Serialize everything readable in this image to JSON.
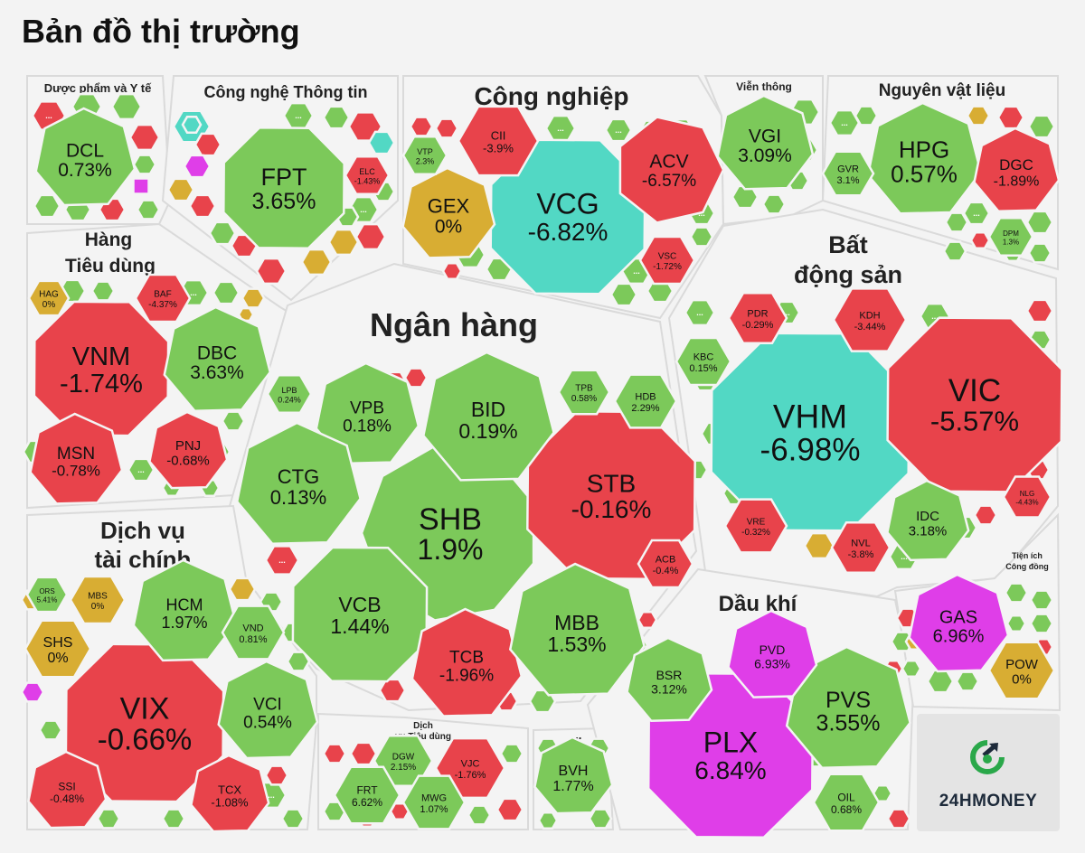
{
  "page": {
    "title": "Bản đồ thị trường"
  },
  "colors": {
    "up": "#7cc95a",
    "down": "#e8434b",
    "flat": "#d8ad33",
    "ceiling": "#df3ee8",
    "floor": "#52d8c4",
    "panel": "#f4f4f4"
  },
  "logo": {
    "text": "24HMONEY",
    "icon": "24hmoney-logo-icon"
  },
  "chart_data": {
    "type": "treemap",
    "title": "Bản đồ thị trường",
    "sectors": [
      {
        "name": "Dược phẩm và Y tế",
        "stocks": [
          {
            "ticker": "DCL",
            "change": "0.73%",
            "status": "up"
          }
        ]
      },
      {
        "name": "Công nghệ Thông tin",
        "stocks": [
          {
            "ticker": "FPT",
            "change": "3.65%",
            "status": "up"
          },
          {
            "ticker": "ELC",
            "change": "-1.43%",
            "status": "down"
          }
        ]
      },
      {
        "name": "Công nghiệp",
        "stocks": [
          {
            "ticker": "VCG",
            "change": "-6.82%",
            "status": "floor"
          },
          {
            "ticker": "GEX",
            "change": "0%",
            "status": "flat"
          },
          {
            "ticker": "ACV",
            "change": "-6.57%",
            "status": "down"
          },
          {
            "ticker": "CII",
            "change": "-3.9%",
            "status": "down"
          },
          {
            "ticker": "VTP",
            "change": "2.3%",
            "status": "up"
          },
          {
            "ticker": "VSC",
            "change": "-1.72%",
            "status": "down"
          }
        ]
      },
      {
        "name": "Viễn thông",
        "stocks": [
          {
            "ticker": "VGI",
            "change": "3.09%",
            "status": "up"
          }
        ]
      },
      {
        "name": "Nguyên vật liệu",
        "stocks": [
          {
            "ticker": "HPG",
            "change": "0.57%",
            "status": "up"
          },
          {
            "ticker": "DGC",
            "change": "-1.89%",
            "status": "down"
          },
          {
            "ticker": "GVR",
            "change": "3.1%",
            "status": "up"
          },
          {
            "ticker": "DPM",
            "change": "1.3%",
            "status": "up"
          }
        ]
      },
      {
        "name": "Hàng Tiêu dùng",
        "stocks": [
          {
            "ticker": "VNM",
            "change": "-1.74%",
            "status": "down"
          },
          {
            "ticker": "DBC",
            "change": "3.63%",
            "status": "up"
          },
          {
            "ticker": "MSN",
            "change": "-0.78%",
            "status": "down"
          },
          {
            "ticker": "PNJ",
            "change": "-0.68%",
            "status": "down"
          },
          {
            "ticker": "HAG",
            "change": "0%",
            "status": "flat"
          },
          {
            "ticker": "BAF",
            "change": "-4.37%",
            "status": "down"
          }
        ]
      },
      {
        "name": "Ngân hàng",
        "stocks": [
          {
            "ticker": "SHB",
            "change": "1.9%",
            "status": "up"
          },
          {
            "ticker": "STB",
            "change": "-0.16%",
            "status": "down"
          },
          {
            "ticker": "BID",
            "change": "0.19%",
            "status": "up"
          },
          {
            "ticker": "VPB",
            "change": "0.18%",
            "status": "up"
          },
          {
            "ticker": "CTG",
            "change": "0.13%",
            "status": "up"
          },
          {
            "ticker": "VCB",
            "change": "1.44%",
            "status": "up"
          },
          {
            "ticker": "TCB",
            "change": "-1.96%",
            "status": "down"
          },
          {
            "ticker": "MBB",
            "change": "1.53%",
            "status": "up"
          },
          {
            "ticker": "ACB",
            "change": "-0.4%",
            "status": "down"
          },
          {
            "ticker": "LPB",
            "change": "0.24%",
            "status": "up"
          },
          {
            "ticker": "TPB",
            "change": "0.58%",
            "status": "up"
          },
          {
            "ticker": "HDB",
            "change": "2.29%",
            "status": "up"
          }
        ]
      },
      {
        "name": "Bất động sản",
        "stocks": [
          {
            "ticker": "VHM",
            "change": "-6.98%",
            "status": "floor"
          },
          {
            "ticker": "VIC",
            "change": "-5.57%",
            "status": "down"
          },
          {
            "ticker": "IDC",
            "change": "3.18%",
            "status": "up"
          },
          {
            "ticker": "KBC",
            "change": "0.15%",
            "status": "up"
          },
          {
            "ticker": "PDR",
            "change": "-0.29%",
            "status": "down"
          },
          {
            "ticker": "KDH",
            "change": "-3.44%",
            "status": "down"
          },
          {
            "ticker": "VRE",
            "change": "-0.32%",
            "status": "down"
          },
          {
            "ticker": "NVL",
            "change": "-3.8%",
            "status": "down"
          },
          {
            "ticker": "NLG",
            "change": "-4.43%",
            "status": "down"
          }
        ]
      },
      {
        "name": "Dịch vụ tài chính",
        "stocks": [
          {
            "ticker": "VIX",
            "change": "-0.66%",
            "status": "down"
          },
          {
            "ticker": "HCM",
            "change": "1.97%",
            "status": "up"
          },
          {
            "ticker": "VCI",
            "change": "0.54%",
            "status": "up"
          },
          {
            "ticker": "SHS",
            "change": "0%",
            "status": "flat"
          },
          {
            "ticker": "MBS",
            "change": "0%",
            "status": "flat"
          },
          {
            "ticker": "ORS",
            "change": "5.41%",
            "status": "up"
          },
          {
            "ticker": "VND",
            "change": "0.81%",
            "status": "up"
          },
          {
            "ticker": "SSI",
            "change": "-0.48%",
            "status": "down"
          },
          {
            "ticker": "TCX",
            "change": "-1.08%",
            "status": "down"
          }
        ]
      },
      {
        "name": "Dịch vụ Tiêu dùng",
        "stocks": [
          {
            "ticker": "DGW",
            "change": "2.15%",
            "status": "up"
          },
          {
            "ticker": "VJC",
            "change": "-1.76%",
            "status": "down"
          },
          {
            "ticker": "FRT",
            "change": "6.62%",
            "status": "up"
          },
          {
            "ticker": "MWG",
            "change": "1.07%",
            "status": "up"
          }
        ]
      },
      {
        "name": "...",
        "stocks": [
          {
            "ticker": "BVH",
            "change": "1.77%",
            "status": "up"
          }
        ]
      },
      {
        "name": "Dầu khí",
        "stocks": [
          {
            "ticker": "PLX",
            "change": "6.84%",
            "status": "ceiling"
          },
          {
            "ticker": "PVS",
            "change": "3.55%",
            "status": "up"
          },
          {
            "ticker": "BSR",
            "change": "3.12%",
            "status": "up"
          },
          {
            "ticker": "PVD",
            "change": "6.93%",
            "status": "ceiling"
          },
          {
            "ticker": "OIL",
            "change": "0.68%",
            "status": "up"
          }
        ]
      },
      {
        "name": "Tiện ích Công đồng",
        "stocks": [
          {
            "ticker": "GAS",
            "change": "6.96%",
            "status": "ceiling"
          },
          {
            "ticker": "POW",
            "change": "0%",
            "status": "flat"
          }
        ]
      }
    ],
    "unlabeled_cell_text": "..."
  }
}
